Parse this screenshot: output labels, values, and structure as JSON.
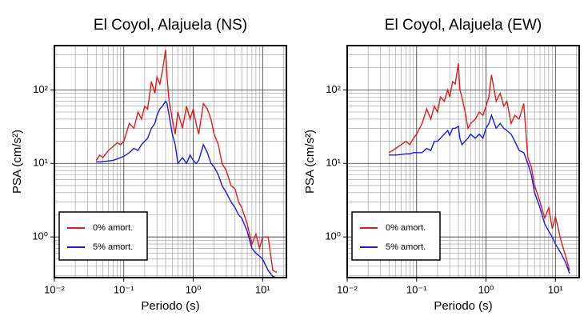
{
  "chart_data": [
    {
      "type": "line",
      "title": "El Coyol, Alajuela (NS)",
      "x_label": "Periodo (s)",
      "y_label": "PSA (cm/s²)",
      "log_x": true,
      "log_y": true,
      "grid": true,
      "legend": "lower left",
      "xlim": [
        0.01,
        22
      ],
      "ylim": [
        0.28,
        400
      ],
      "xticks": [
        {
          "value": 0.01,
          "label": "10⁻²"
        },
        {
          "value": 0.1,
          "label": "10⁻¹"
        },
        {
          "value": 1,
          "label": "10⁰"
        },
        {
          "value": 10,
          "label": "10¹"
        }
      ],
      "yticks": [
        {
          "value": 1,
          "label": "10⁰"
        },
        {
          "value": 10,
          "label": "10¹"
        },
        {
          "value": 100,
          "label": "10²"
        }
      ],
      "xminorticks": [
        0.02,
        0.03,
        0.04,
        0.05,
        0.06,
        0.07,
        0.08,
        0.09,
        0.2,
        0.3,
        0.4,
        0.5,
        0.6,
        0.7,
        0.8,
        0.9,
        2,
        3,
        4,
        5,
        6,
        7,
        8,
        9,
        20
      ],
      "yminorticks": [
        0.3,
        0.4,
        0.5,
        0.6,
        0.7,
        0.8,
        0.9,
        2,
        3,
        4,
        5,
        6,
        7,
        8,
        9,
        20,
        30,
        40,
        50,
        60,
        70,
        80,
        90,
        200,
        300,
        400
      ],
      "x": [
        0.04,
        0.045,
        0.05,
        0.06,
        0.07,
        0.08,
        0.09,
        0.1,
        0.12,
        0.14,
        0.16,
        0.18,
        0.2,
        0.22,
        0.25,
        0.28,
        0.3,
        0.33,
        0.36,
        0.4,
        0.42,
        0.45,
        0.5,
        0.55,
        0.6,
        0.7,
        0.8,
        0.9,
        1.0,
        1.1,
        1.2,
        1.4,
        1.6,
        1.8,
        2,
        2.3,
        2.6,
        3,
        3.5,
        4,
        4.5,
        5,
        6,
        7,
        8,
        9,
        10,
        12,
        14,
        16
      ],
      "series": [
        {
          "name": "0% amort.",
          "color": "#e41a1c",
          "values": [
            11,
            13,
            12,
            15,
            17,
            19,
            18,
            20,
            35,
            30,
            50,
            40,
            60,
            55,
            130,
            90,
            150,
            120,
            180,
            350,
            150,
            70,
            40,
            25,
            50,
            30,
            60,
            40,
            55,
            35,
            25,
            65,
            55,
            40,
            25,
            18,
            10,
            8,
            5,
            4.5,
            3,
            2.5,
            1.5,
            0.8,
            1.1,
            0.7,
            1.0,
            1.0,
            0.35,
            0.33
          ]
        },
        {
          "name": "5% amort.",
          "color": "#1a1ae6",
          "values": [
            10.5,
            10.5,
            10.6,
            10.8,
            11,
            11.5,
            12,
            12.5,
            14,
            16,
            15,
            18,
            20,
            22,
            30,
            35,
            45,
            55,
            60,
            70,
            65,
            45,
            25,
            18,
            10,
            12,
            10,
            13,
            11,
            10,
            11,
            18,
            14,
            10,
            9,
            7,
            5,
            4,
            3,
            2.5,
            2,
            1.8,
            1.2,
            0.7,
            0.6,
            0.55,
            0.5,
            0.35,
            0.29,
            0.28
          ]
        }
      ]
    },
    {
      "type": "line",
      "title": "El Coyol, Alajuela (EW)",
      "x_label": "Periodo (s)",
      "y_label": "PSA (cm/s²)",
      "log_x": true,
      "log_y": true,
      "grid": true,
      "legend": "lower left",
      "xlim": [
        0.01,
        22
      ],
      "ylim": [
        0.28,
        400
      ],
      "xticks": [
        {
          "value": 0.01,
          "label": "10⁻²"
        },
        {
          "value": 0.1,
          "label": "10⁻¹"
        },
        {
          "value": 1,
          "label": "10⁰"
        },
        {
          "value": 10,
          "label": "10¹"
        }
      ],
      "yticks": [
        {
          "value": 1,
          "label": "10⁰"
        },
        {
          "value": 10,
          "label": "10¹"
        },
        {
          "value": 100,
          "label": "10²"
        }
      ],
      "xminorticks": [
        0.02,
        0.03,
        0.04,
        0.05,
        0.06,
        0.07,
        0.08,
        0.09,
        0.2,
        0.3,
        0.4,
        0.5,
        0.6,
        0.7,
        0.8,
        0.9,
        2,
        3,
        4,
        5,
        6,
        7,
        8,
        9,
        20
      ],
      "yminorticks": [
        0.3,
        0.4,
        0.5,
        0.6,
        0.7,
        0.8,
        0.9,
        2,
        3,
        4,
        5,
        6,
        7,
        8,
        9,
        20,
        30,
        40,
        50,
        60,
        70,
        80,
        90,
        200,
        300,
        400
      ],
      "x": [
        0.04,
        0.045,
        0.05,
        0.06,
        0.07,
        0.08,
        0.09,
        0.1,
        0.12,
        0.14,
        0.16,
        0.18,
        0.2,
        0.22,
        0.25,
        0.28,
        0.3,
        0.33,
        0.36,
        0.4,
        0.42,
        0.45,
        0.5,
        0.55,
        0.6,
        0.7,
        0.8,
        0.9,
        1.0,
        1.1,
        1.2,
        1.4,
        1.6,
        1.8,
        2,
        2.3,
        2.6,
        3,
        3.5,
        4,
        4.5,
        5,
        6,
        7,
        8,
        9,
        10,
        12,
        14,
        16
      ],
      "series": [
        {
          "name": "0% amort.",
          "color": "#e41a1c",
          "values": [
            14,
            15,
            16,
            18,
            20,
            18,
            22,
            25,
            35,
            55,
            40,
            60,
            50,
            80,
            70,
            100,
            80,
            130,
            120,
            230,
            100,
            80,
            50,
            30,
            35,
            40,
            50,
            45,
            60,
            80,
            160,
            70,
            90,
            60,
            70,
            35,
            45,
            40,
            65,
            12,
            9,
            5,
            3,
            1.8,
            2.5,
            1.3,
            1.9,
            0.9,
            0.55,
            0.35
          ]
        },
        {
          "name": "5% amort.",
          "color": "#1a1ae6",
          "values": [
            13,
            13,
            13,
            13.2,
            13.5,
            13.5,
            14,
            14,
            14,
            16,
            15,
            20,
            20,
            22,
            25,
            28,
            24,
            30,
            30,
            32,
            22,
            18,
            20,
            22,
            25,
            22,
            25,
            22,
            30,
            35,
            45,
            30,
            35,
            30,
            28,
            25,
            20,
            15,
            14,
            10,
            7,
            4,
            2.5,
            1.5,
            1.2,
            1.0,
            0.8,
            0.6,
            0.45,
            0.32
          ]
        }
      ]
    }
  ]
}
